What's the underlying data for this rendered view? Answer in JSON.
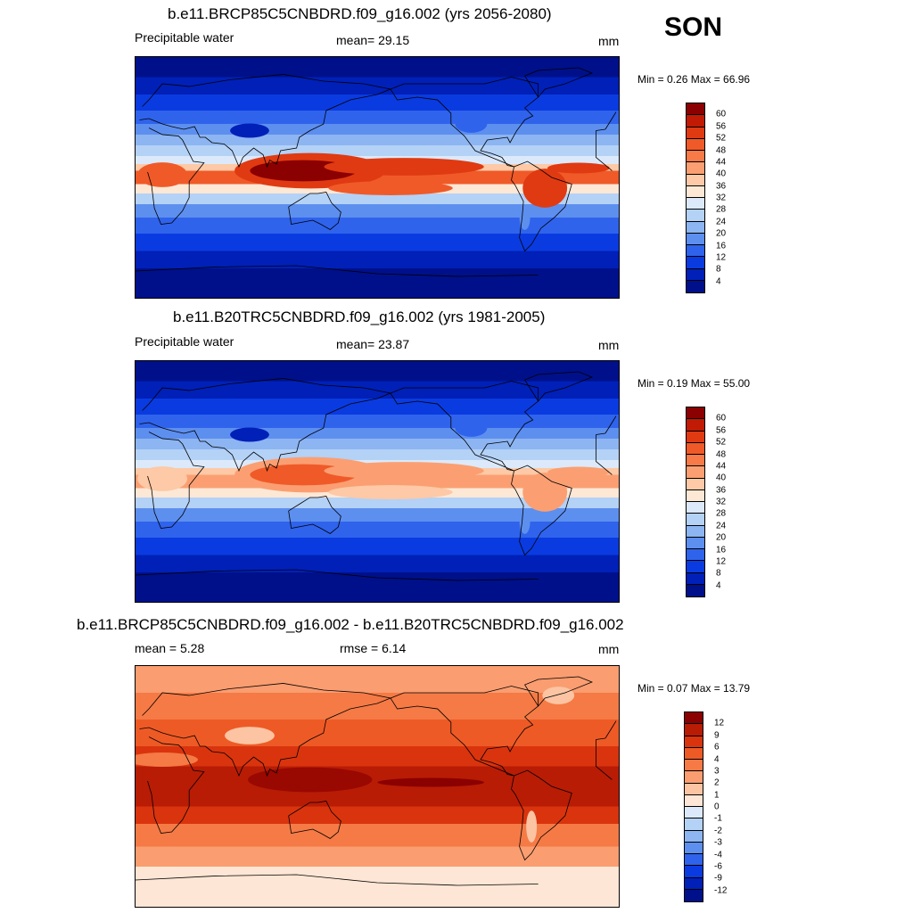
{
  "season": "SON",
  "panels": [
    {
      "title": "b.e11.BRCP85C5CNBDRD.f09_g16.002 (yrs 2056-2080)",
      "left_label": "Precipitable water",
      "center_label": "mean=  29.15",
      "right_label": "mm",
      "minmax": "Min =   0.26 Max =  66.96",
      "colorbar": {
        "colors": [
          "#8b0000",
          "#c11a05",
          "#e03a12",
          "#f05a28",
          "#f77a48",
          "#fb9f72",
          "#fdc9a6",
          "#fde8d6",
          "#dbe9fa",
          "#b4d1f6",
          "#8db5f2",
          "#5d8fef",
          "#2f63ec",
          "#0a3be0",
          "#0020b8",
          "#00108a"
        ],
        "labels": [
          "60",
          "56",
          "52",
          "48",
          "44",
          "40",
          "36",
          "32",
          "28",
          "24",
          "20",
          "16",
          "12",
          "8",
          "4"
        ]
      },
      "field": "future"
    },
    {
      "title": "b.e11.B20TRC5CNBDRD.f09_g16.002 (yrs 1981-2005)",
      "left_label": "Precipitable water",
      "center_label": "mean=  23.87",
      "right_label": "mm",
      "minmax": "Min =   0.19 Max =  55.00",
      "colorbar": {
        "colors": [
          "#8b0000",
          "#c11a05",
          "#e03a12",
          "#f05a28",
          "#f77a48",
          "#fb9f72",
          "#fdc9a6",
          "#fde8d6",
          "#dbe9fa",
          "#b4d1f6",
          "#8db5f2",
          "#5d8fef",
          "#2f63ec",
          "#0a3be0",
          "#0020b8",
          "#00108a"
        ],
        "labels": [
          "60",
          "56",
          "52",
          "48",
          "44",
          "40",
          "36",
          "32",
          "28",
          "24",
          "20",
          "16",
          "12",
          "8",
          "4"
        ]
      },
      "field": "historical"
    },
    {
      "title": "b.e11.BRCP85C5CNBDRD.f09_g16.002 - b.e11.B20TRC5CNBDRD.f09_g16.002",
      "left_label": "mean =   5.28",
      "center_label": "rmse =   6.14",
      "right_label": "mm",
      "minmax": "Min =  0.07 Max =  13.79",
      "colorbar": {
        "colors": [
          "#8b0000",
          "#b81c05",
          "#d9340e",
          "#ee5a25",
          "#f57a45",
          "#fa9d70",
          "#fcc4a2",
          "#fde6d5",
          "#dbe9fa",
          "#b4d1f6",
          "#8db5f2",
          "#5d8fef",
          "#2f63ec",
          "#0a3be0",
          "#0020b8",
          "#00108a"
        ],
        "labels": [
          "12",
          "9",
          "6",
          "4",
          "3",
          "2",
          "1",
          "0",
          "-1",
          "-2",
          "-3",
          "-4",
          "-6",
          "-9",
          "-12"
        ]
      },
      "field": "difference"
    }
  ]
}
